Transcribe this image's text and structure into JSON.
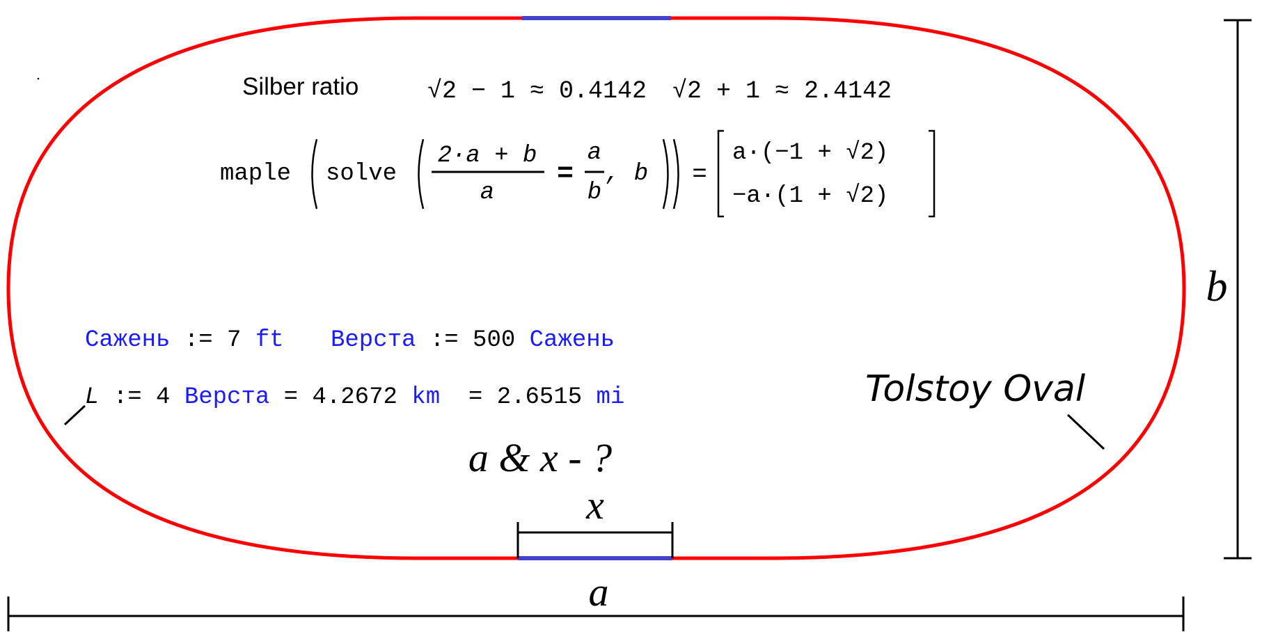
{
  "colors": {
    "track": "#ff0000",
    "straight_segment": "#4343c8",
    "units": "#1a1aff",
    "text": "#000000"
  },
  "silber": {
    "label": "Silber ratio",
    "expr1": "√2 − 1 ≈ 0.4142",
    "expr2": "√2 + 1 ≈ 2.4142"
  },
  "maple": {
    "fn": "maple",
    "solve": "solve",
    "numerator": "2·a + b",
    "denominator": "a",
    "equals_bold": "=",
    "rhs_num": "a",
    "rhs_den": "b",
    "var": ", b",
    "equals": "=",
    "result_row1": "a·(−1 + √2)",
    "result_row2": "−a·(1 + √2)"
  },
  "units": {
    "sazhen_name": "Сажень",
    "sazhen_def": " := 7 ",
    "sazhen_unit": "ft",
    "versta_name": "Верста",
    "versta_def": " := 500 ",
    "versta_unit": "Сажень"
  },
  "length": {
    "var": "L",
    "assign": " := 4 ",
    "unit": "Верста",
    "eq_km": " = 4.2672 ",
    "km": "km",
    "eq_mi": "  = 2.6515 ",
    "mi": "mi"
  },
  "question": "a & x - ?",
  "labels": {
    "a": "a",
    "b": "b",
    "x": "x"
  },
  "track_name": "Tolstoy Oval"
}
